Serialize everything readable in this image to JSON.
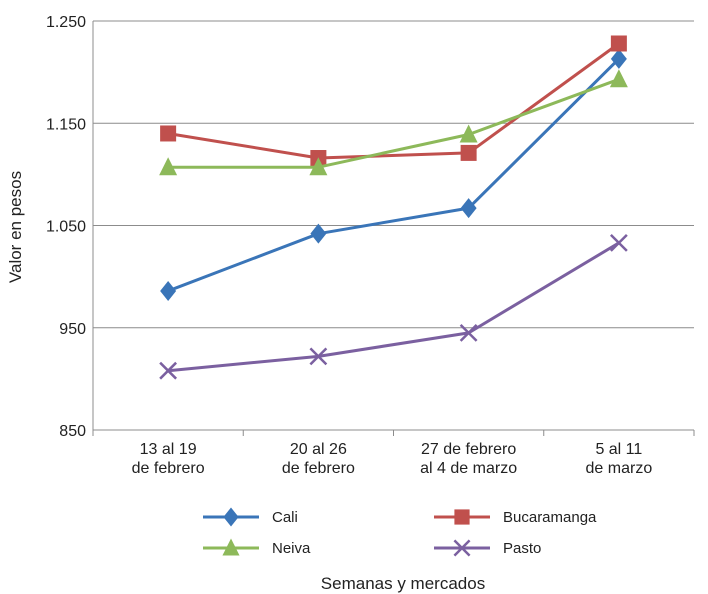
{
  "chart_data": {
    "type": "line",
    "categories": [
      [
        "13 al 19",
        "de febrero"
      ],
      [
        "20 al 26",
        "de febrero"
      ],
      [
        "27 de febrero",
        "al 4 de marzo"
      ],
      [
        "5 al 11",
        "de marzo"
      ]
    ],
    "series": [
      {
        "name": "Cali",
        "values": [
          986,
          1042,
          1067,
          1213
        ],
        "color": "#3a75b8",
        "marker": "diamond"
      },
      {
        "name": "Bucaramanga",
        "values": [
          1140,
          1116,
          1121,
          1228
        ],
        "color": "#c0504d",
        "marker": "square"
      },
      {
        "name": "Neiva",
        "values": [
          1107,
          1107,
          1139,
          1193
        ],
        "color": "#8db95a",
        "marker": "triangle"
      },
      {
        "name": "Pasto",
        "values": [
          908,
          922,
          945,
          1033
        ],
        "color": "#7b60a0",
        "marker": "x"
      }
    ],
    "title": "",
    "xlabel": "Semanas y mercados",
    "ylabel": "Valor en pesos",
    "ylim": [
      850,
      1250
    ],
    "yticks": [
      850,
      950,
      1050,
      1150,
      1250
    ],
    "ytick_labels": [
      "850",
      "950",
      "1.050",
      "1.150",
      "1.250"
    ],
    "grid": true,
    "legend_position": "bottom"
  }
}
